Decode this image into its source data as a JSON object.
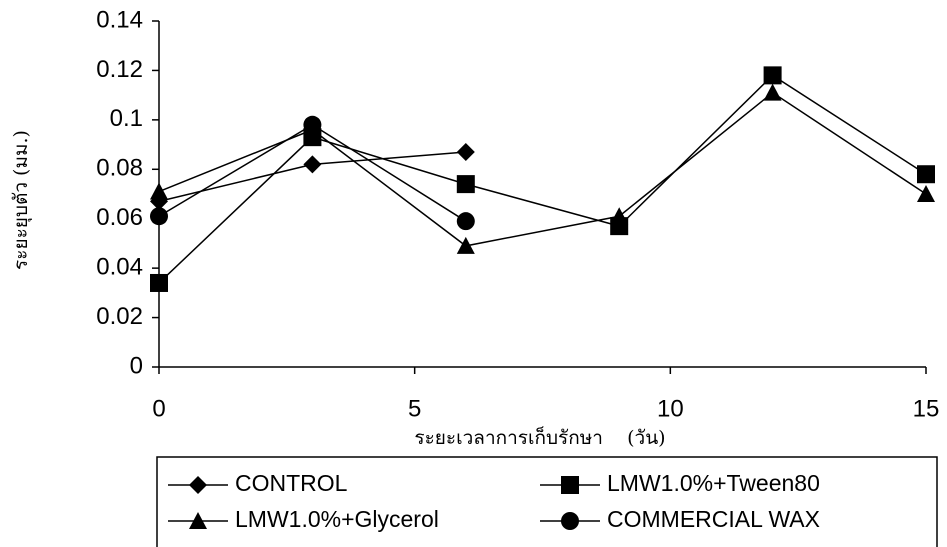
{
  "chart_data": {
    "type": "line",
    "x_label": "ระยะเวลาการเก็บรักษา    (วัน)",
    "y_label": "ระยะยุบตัว    (มม.)",
    "xlim": [
      0,
      15
    ],
    "xticks": [
      0,
      5,
      10,
      15
    ],
    "ylim": [
      0,
      0.14
    ],
    "yticks": [
      0,
      0.02,
      0.04,
      0.06,
      0.08,
      0.1,
      0.12,
      0.14
    ],
    "grid": false,
    "series": [
      {
        "name": "CONTROL",
        "color": "#000000",
        "marker": "diamond",
        "x": [
          0,
          3,
          6
        ],
        "values": [
          0.067,
          0.082,
          0.087
        ]
      },
      {
        "name": "LMW1.0%+Tween80",
        "color": "#000000",
        "marker": "square",
        "x": [
          0,
          3,
          6,
          9,
          12,
          15
        ],
        "values": [
          0.034,
          0.093,
          0.074,
          0.057,
          0.118,
          0.078
        ]
      },
      {
        "name": "LMW1.0%+Glycerol",
        "color": "#000000",
        "marker": "triangle",
        "x": [
          0,
          3,
          6,
          9,
          12,
          15
        ],
        "values": [
          0.071,
          0.096,
          0.049,
          0.061,
          0.111,
          0.07
        ]
      },
      {
        "name": "COMMERCIAL WAX",
        "color": "#000000",
        "marker": "circle",
        "x": [
          0,
          3,
          6
        ],
        "values": [
          0.061,
          0.098,
          0.059
        ]
      }
    ]
  }
}
